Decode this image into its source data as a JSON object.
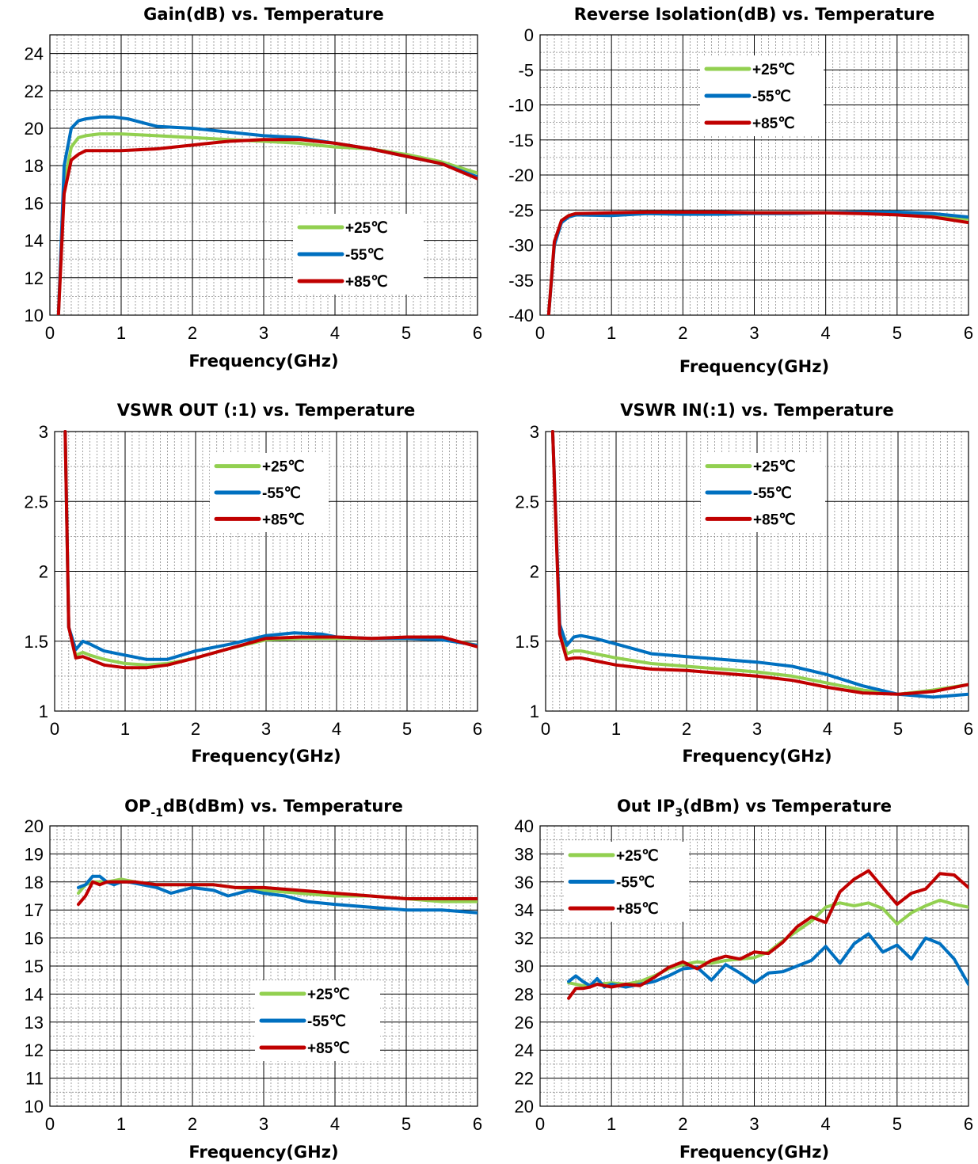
{
  "colors": {
    "p25": "#92d050",
    "m55": "#0070c0",
    "p85": "#c00000"
  },
  "chart_data": [
    {
      "type": "line",
      "title": "Gain(dB) vs. Temperature",
      "xlabel": "Frequency(GHz)",
      "ylabel": "",
      "xlim": [
        0,
        6
      ],
      "ylim": [
        10,
        25
      ],
      "xticks": [
        0,
        1,
        2,
        3,
        4,
        5,
        6
      ],
      "yticks": [
        10,
        12,
        14,
        16,
        18,
        20,
        22,
        24
      ],
      "legend_position": "lower-right",
      "series": [
        {
          "name": "+25℃",
          "color": "#92d050",
          "x": [
            0.12,
            0.2,
            0.3,
            0.4,
            0.5,
            0.7,
            1,
            1.5,
            2,
            2.5,
            3,
            3.5,
            4,
            4.5,
            5,
            5.5,
            6
          ],
          "y": [
            10,
            17,
            19,
            19.5,
            19.6,
            19.7,
            19.7,
            19.6,
            19.5,
            19.4,
            19.3,
            19.2,
            19.0,
            18.9,
            18.6,
            18.2,
            17.6
          ]
        },
        {
          "name": "-55℃",
          "color": "#0070c0",
          "x": [
            0.12,
            0.2,
            0.3,
            0.4,
            0.5,
            0.7,
            0.9,
            1.1,
            1.3,
            1.5,
            2,
            2.5,
            3,
            3.5,
            4,
            4.5,
            5,
            5.5,
            6
          ],
          "y": [
            10,
            18,
            20,
            20.4,
            20.5,
            20.6,
            20.6,
            20.5,
            20.3,
            20.1,
            20.0,
            19.8,
            19.6,
            19.5,
            19.2,
            18.9,
            18.5,
            18.1,
            17.4
          ]
        },
        {
          "name": "+85℃",
          "color": "#c00000",
          "x": [
            0.12,
            0.2,
            0.3,
            0.4,
            0.5,
            0.7,
            1,
            1.5,
            2,
            2.5,
            3,
            3.5,
            4,
            4.5,
            5,
            5.5,
            6
          ],
          "y": [
            10,
            16.5,
            18.3,
            18.6,
            18.8,
            18.8,
            18.8,
            18.9,
            19.1,
            19.3,
            19.4,
            19.4,
            19.2,
            18.9,
            18.5,
            18.1,
            17.3
          ]
        }
      ]
    },
    {
      "type": "line",
      "title": "Reverse Isolation(dB) vs. Temperature",
      "xlabel": "Frequency(GHz)",
      "ylabel": "",
      "xlim": [
        0,
        6
      ],
      "ylim": [
        -40,
        0
      ],
      "xticks": [
        0,
        1,
        2,
        3,
        4,
        5,
        6
      ],
      "yticks": [
        0,
        -5,
        -10,
        -15,
        -20,
        -25,
        -30,
        -35,
        -40
      ],
      "legend_position": "top-center",
      "series": [
        {
          "name": "+25℃",
          "color": "#92d050",
          "x": [
            0.12,
            0.2,
            0.3,
            0.4,
            0.5,
            1,
            1.5,
            2,
            2.5,
            3,
            3.5,
            4,
            4.5,
            5,
            5.5,
            6
          ],
          "y": [
            -40,
            -30,
            -26.5,
            -25.8,
            -25.5,
            -25.5,
            -25.3,
            -25.4,
            -25.4,
            -25.4,
            -25.4,
            -25.4,
            -25.4,
            -25.5,
            -25.8,
            -26.3
          ]
        },
        {
          "name": "-55℃",
          "color": "#0070c0",
          "x": [
            0.12,
            0.2,
            0.3,
            0.4,
            0.5,
            1,
            1.5,
            2,
            2.5,
            3,
            3.5,
            4,
            4.5,
            5,
            5.5,
            6
          ],
          "y": [
            -40,
            -30,
            -26.8,
            -26,
            -25.7,
            -25.8,
            -25.5,
            -25.6,
            -25.6,
            -25.5,
            -25.5,
            -25.4,
            -25.3,
            -25.3,
            -25.5,
            -26.0
          ]
        },
        {
          "name": "+85℃",
          "color": "#c00000",
          "x": [
            0.12,
            0.2,
            0.3,
            0.4,
            0.5,
            1,
            1.5,
            2,
            2.5,
            3,
            3.5,
            4,
            4.5,
            5,
            5.5,
            6
          ],
          "y": [
            -40,
            -29.5,
            -26.5,
            -25.8,
            -25.5,
            -25.4,
            -25.3,
            -25.3,
            -25.3,
            -25.4,
            -25.4,
            -25.4,
            -25.5,
            -25.7,
            -26.0,
            -26.8
          ]
        }
      ]
    },
    {
      "type": "line",
      "title": "VSWR OUT (:1) vs. Temperature",
      "xlabel": "Frequency(GHz)",
      "ylabel": "",
      "xlim": [
        0,
        6
      ],
      "ylim": [
        1,
        3
      ],
      "xticks": [
        0,
        1,
        2,
        3,
        4,
        5,
        6
      ],
      "yticks": [
        1,
        1.5,
        2,
        2.5,
        3
      ],
      "legend_position": "top-center",
      "series": [
        {
          "name": "+25℃",
          "color": "#92d050",
          "x": [
            0.15,
            0.2,
            0.3,
            0.4,
            0.5,
            0.7,
            1,
            1.3,
            1.6,
            2,
            2.5,
            3,
            3.5,
            4,
            4.5,
            5,
            5.5,
            6
          ],
          "y": [
            3,
            1.6,
            1.4,
            1.42,
            1.4,
            1.37,
            1.34,
            1.33,
            1.34,
            1.38,
            1.45,
            1.51,
            1.52,
            1.52,
            1.52,
            1.52,
            1.52,
            1.47
          ]
        },
        {
          "name": "-55℃",
          "color": "#0070c0",
          "x": [
            0.15,
            0.2,
            0.3,
            0.4,
            0.5,
            0.7,
            1,
            1.3,
            1.6,
            2,
            2.5,
            3,
            3.4,
            3.8,
            4,
            4.5,
            5,
            5.5,
            6
          ],
          "y": [
            3,
            1.6,
            1.44,
            1.5,
            1.48,
            1.43,
            1.4,
            1.37,
            1.37,
            1.43,
            1.48,
            1.54,
            1.56,
            1.55,
            1.53,
            1.52,
            1.52,
            1.51,
            1.47
          ]
        },
        {
          "name": "+85℃",
          "color": "#c00000",
          "x": [
            0.15,
            0.2,
            0.3,
            0.4,
            0.5,
            0.7,
            1,
            1.3,
            1.6,
            2,
            2.5,
            3,
            3.5,
            4,
            4.5,
            5,
            5.5,
            6
          ],
          "y": [
            3,
            1.6,
            1.38,
            1.39,
            1.37,
            1.33,
            1.31,
            1.31,
            1.33,
            1.38,
            1.45,
            1.52,
            1.53,
            1.53,
            1.52,
            1.53,
            1.53,
            1.46
          ]
        }
      ]
    },
    {
      "type": "line",
      "title": "VSWR IN(:1) vs. Temperature",
      "xlabel": "Frequency(GHz)",
      "ylabel": "",
      "xlim": [
        0,
        6
      ],
      "ylim": [
        1,
        3
      ],
      "xticks": [
        0,
        1,
        2,
        3,
        4,
        5,
        6
      ],
      "yticks": [
        1,
        1.5,
        2,
        2.5,
        3
      ],
      "legend_position": "top-center",
      "series": [
        {
          "name": "+25℃",
          "color": "#92d050",
          "x": [
            0.1,
            0.2,
            0.3,
            0.4,
            0.5,
            0.7,
            1,
            1.5,
            2,
            2.5,
            3,
            3.5,
            4,
            4.5,
            5,
            5.5,
            6
          ],
          "y": [
            3,
            1.6,
            1.41,
            1.43,
            1.43,
            1.41,
            1.38,
            1.34,
            1.32,
            1.3,
            1.28,
            1.25,
            1.2,
            1.15,
            1.12,
            1.15,
            1.19
          ]
        },
        {
          "name": "-55℃",
          "color": "#0070c0",
          "x": [
            0.1,
            0.2,
            0.3,
            0.4,
            0.5,
            0.7,
            1,
            1.5,
            2,
            2.5,
            3,
            3.5,
            4,
            4.5,
            5,
            5.5,
            6
          ],
          "y": [
            3,
            1.62,
            1.47,
            1.53,
            1.54,
            1.52,
            1.48,
            1.41,
            1.39,
            1.37,
            1.35,
            1.32,
            1.26,
            1.18,
            1.12,
            1.1,
            1.12
          ]
        },
        {
          "name": "+85℃",
          "color": "#c00000",
          "x": [
            0.1,
            0.2,
            0.3,
            0.4,
            0.5,
            0.7,
            1,
            1.5,
            2,
            2.5,
            3,
            3.5,
            4,
            4.5,
            5,
            5.5,
            6
          ],
          "y": [
            3,
            1.55,
            1.37,
            1.38,
            1.38,
            1.36,
            1.33,
            1.3,
            1.29,
            1.27,
            1.25,
            1.22,
            1.17,
            1.13,
            1.12,
            1.14,
            1.19
          ]
        }
      ]
    },
    {
      "type": "line",
      "title": "OP-1dB(dBm) vs. Temperature",
      "title_parts": [
        "OP",
        "-1",
        "dB(dBm) vs. Temperature"
      ],
      "xlabel": "Frequency(GHz)",
      "ylabel": "",
      "xlim": [
        0,
        6
      ],
      "ylim": [
        10,
        20
      ],
      "xticks": [
        0,
        1,
        2,
        3,
        4,
        5,
        6
      ],
      "yticks": [
        10,
        11,
        12,
        13,
        14,
        15,
        16,
        17,
        18,
        19,
        20
      ],
      "legend_position": "bottom-center",
      "series": [
        {
          "name": "+25℃",
          "color": "#92d050",
          "x": [
            0.4,
            0.5,
            0.6,
            0.7,
            0.8,
            1,
            1.2,
            1.5,
            1.8,
            2,
            2.3,
            2.6,
            3,
            3.5,
            4,
            4.5,
            5,
            5.5,
            6
          ],
          "y": [
            17.6,
            17.9,
            18.0,
            18.0,
            18.0,
            18.1,
            18.0,
            17.9,
            17.9,
            17.9,
            17.9,
            17.8,
            17.7,
            17.6,
            17.5,
            17.5,
            17.4,
            17.3,
            17.3
          ]
        },
        {
          "name": "-55℃",
          "color": "#0070c0",
          "x": [
            0.4,
            0.5,
            0.6,
            0.7,
            0.8,
            0.9,
            1,
            1.1,
            1.3,
            1.5,
            1.7,
            2,
            2.3,
            2.5,
            2.8,
            3,
            3.3,
            3.6,
            4,
            4.5,
            5,
            5.5,
            6
          ],
          "y": [
            17.8,
            17.9,
            18.2,
            18.2,
            18.0,
            17.9,
            18.0,
            18.0,
            17.9,
            17.8,
            17.6,
            17.8,
            17.7,
            17.5,
            17.7,
            17.6,
            17.5,
            17.3,
            17.2,
            17.1,
            17.0,
            17.0,
            16.9
          ]
        },
        {
          "name": "+85℃",
          "color": "#c00000",
          "x": [
            0.4,
            0.5,
            0.6,
            0.7,
            0.8,
            1,
            1.2,
            1.5,
            1.8,
            2,
            2.3,
            2.6,
            3,
            3.5,
            4,
            4.5,
            5,
            5.5,
            6
          ],
          "y": [
            17.2,
            17.5,
            18.0,
            17.9,
            18.0,
            18.0,
            18.0,
            17.9,
            17.9,
            17.9,
            17.9,
            17.8,
            17.8,
            17.7,
            17.6,
            17.5,
            17.4,
            17.4,
            17.4
          ]
        }
      ]
    },
    {
      "type": "line",
      "title": "Out IP3(dBm) vs Temperature",
      "title_parts": [
        "Out IP",
        "3",
        "(dBm) vs Temperature"
      ],
      "xlabel": "Frequency(GHz)",
      "ylabel": "",
      "xlim": [
        0,
        6
      ],
      "ylim": [
        20,
        40
      ],
      "xticks": [
        0,
        1,
        2,
        3,
        4,
        5,
        6
      ],
      "yticks": [
        20,
        22,
        24,
        26,
        28,
        30,
        32,
        34,
        36,
        38,
        40
      ],
      "legend_position": "top-left",
      "series": [
        {
          "name": "+25℃",
          "color": "#92d050",
          "x": [
            0.4,
            0.6,
            0.8,
            1,
            1.2,
            1.4,
            1.6,
            1.8,
            2,
            2.2,
            2.4,
            2.6,
            2.8,
            3,
            3.2,
            3.4,
            3.6,
            3.8,
            4,
            4.2,
            4.4,
            4.6,
            4.8,
            5,
            5.2,
            5.4,
            5.6,
            5.8,
            6
          ],
          "y": [
            28.8,
            28.6,
            28.7,
            28.8,
            28.7,
            28.9,
            29.3,
            29.8,
            30.1,
            30.3,
            30.2,
            30.4,
            30.5,
            30.6,
            31.0,
            31.8,
            32.5,
            33.2,
            34.2,
            34.5,
            34.3,
            34.5,
            34.1,
            33.0,
            33.8,
            34.3,
            34.7,
            34.4,
            34.2
          ]
        },
        {
          "name": "-55℃",
          "color": "#0070c0",
          "x": [
            0.4,
            0.5,
            0.6,
            0.7,
            0.8,
            0.9,
            1,
            1.2,
            1.4,
            1.6,
            1.8,
            2,
            2.2,
            2.4,
            2.6,
            2.8,
            3,
            3.2,
            3.4,
            3.6,
            3.8,
            4,
            4.2,
            4.4,
            4.6,
            4.8,
            5,
            5.2,
            5.4,
            5.6,
            5.8,
            6
          ],
          "y": [
            28.9,
            29.3,
            28.9,
            28.6,
            29.1,
            28.5,
            28.7,
            28.5,
            28.7,
            28.9,
            29.3,
            29.8,
            29.9,
            29.0,
            30.1,
            29.5,
            28.8,
            29.5,
            29.6,
            30.0,
            30.4,
            31.4,
            30.2,
            31.6,
            32.3,
            31.0,
            31.5,
            30.5,
            32.0,
            31.6,
            30.5,
            28.7
          ]
        },
        {
          "name": "+85℃",
          "color": "#c00000",
          "x": [
            0.4,
            0.5,
            0.6,
            0.7,
            0.8,
            1,
            1.2,
            1.4,
            1.6,
            1.8,
            2,
            2.2,
            2.4,
            2.6,
            2.8,
            3,
            3.2,
            3.4,
            3.6,
            3.8,
            4,
            4.2,
            4.4,
            4.6,
            4.8,
            5,
            5.2,
            5.4,
            5.6,
            5.8,
            6
          ],
          "y": [
            27.7,
            28.4,
            28.4,
            28.5,
            28.7,
            28.5,
            28.7,
            28.6,
            29.2,
            29.9,
            30.3,
            29.8,
            30.4,
            30.7,
            30.5,
            31.0,
            30.9,
            31.7,
            32.8,
            33.5,
            33.1,
            35.3,
            36.2,
            36.8,
            35.6,
            34.4,
            35.2,
            35.5,
            36.6,
            36.5,
            35.6
          ]
        }
      ]
    }
  ]
}
